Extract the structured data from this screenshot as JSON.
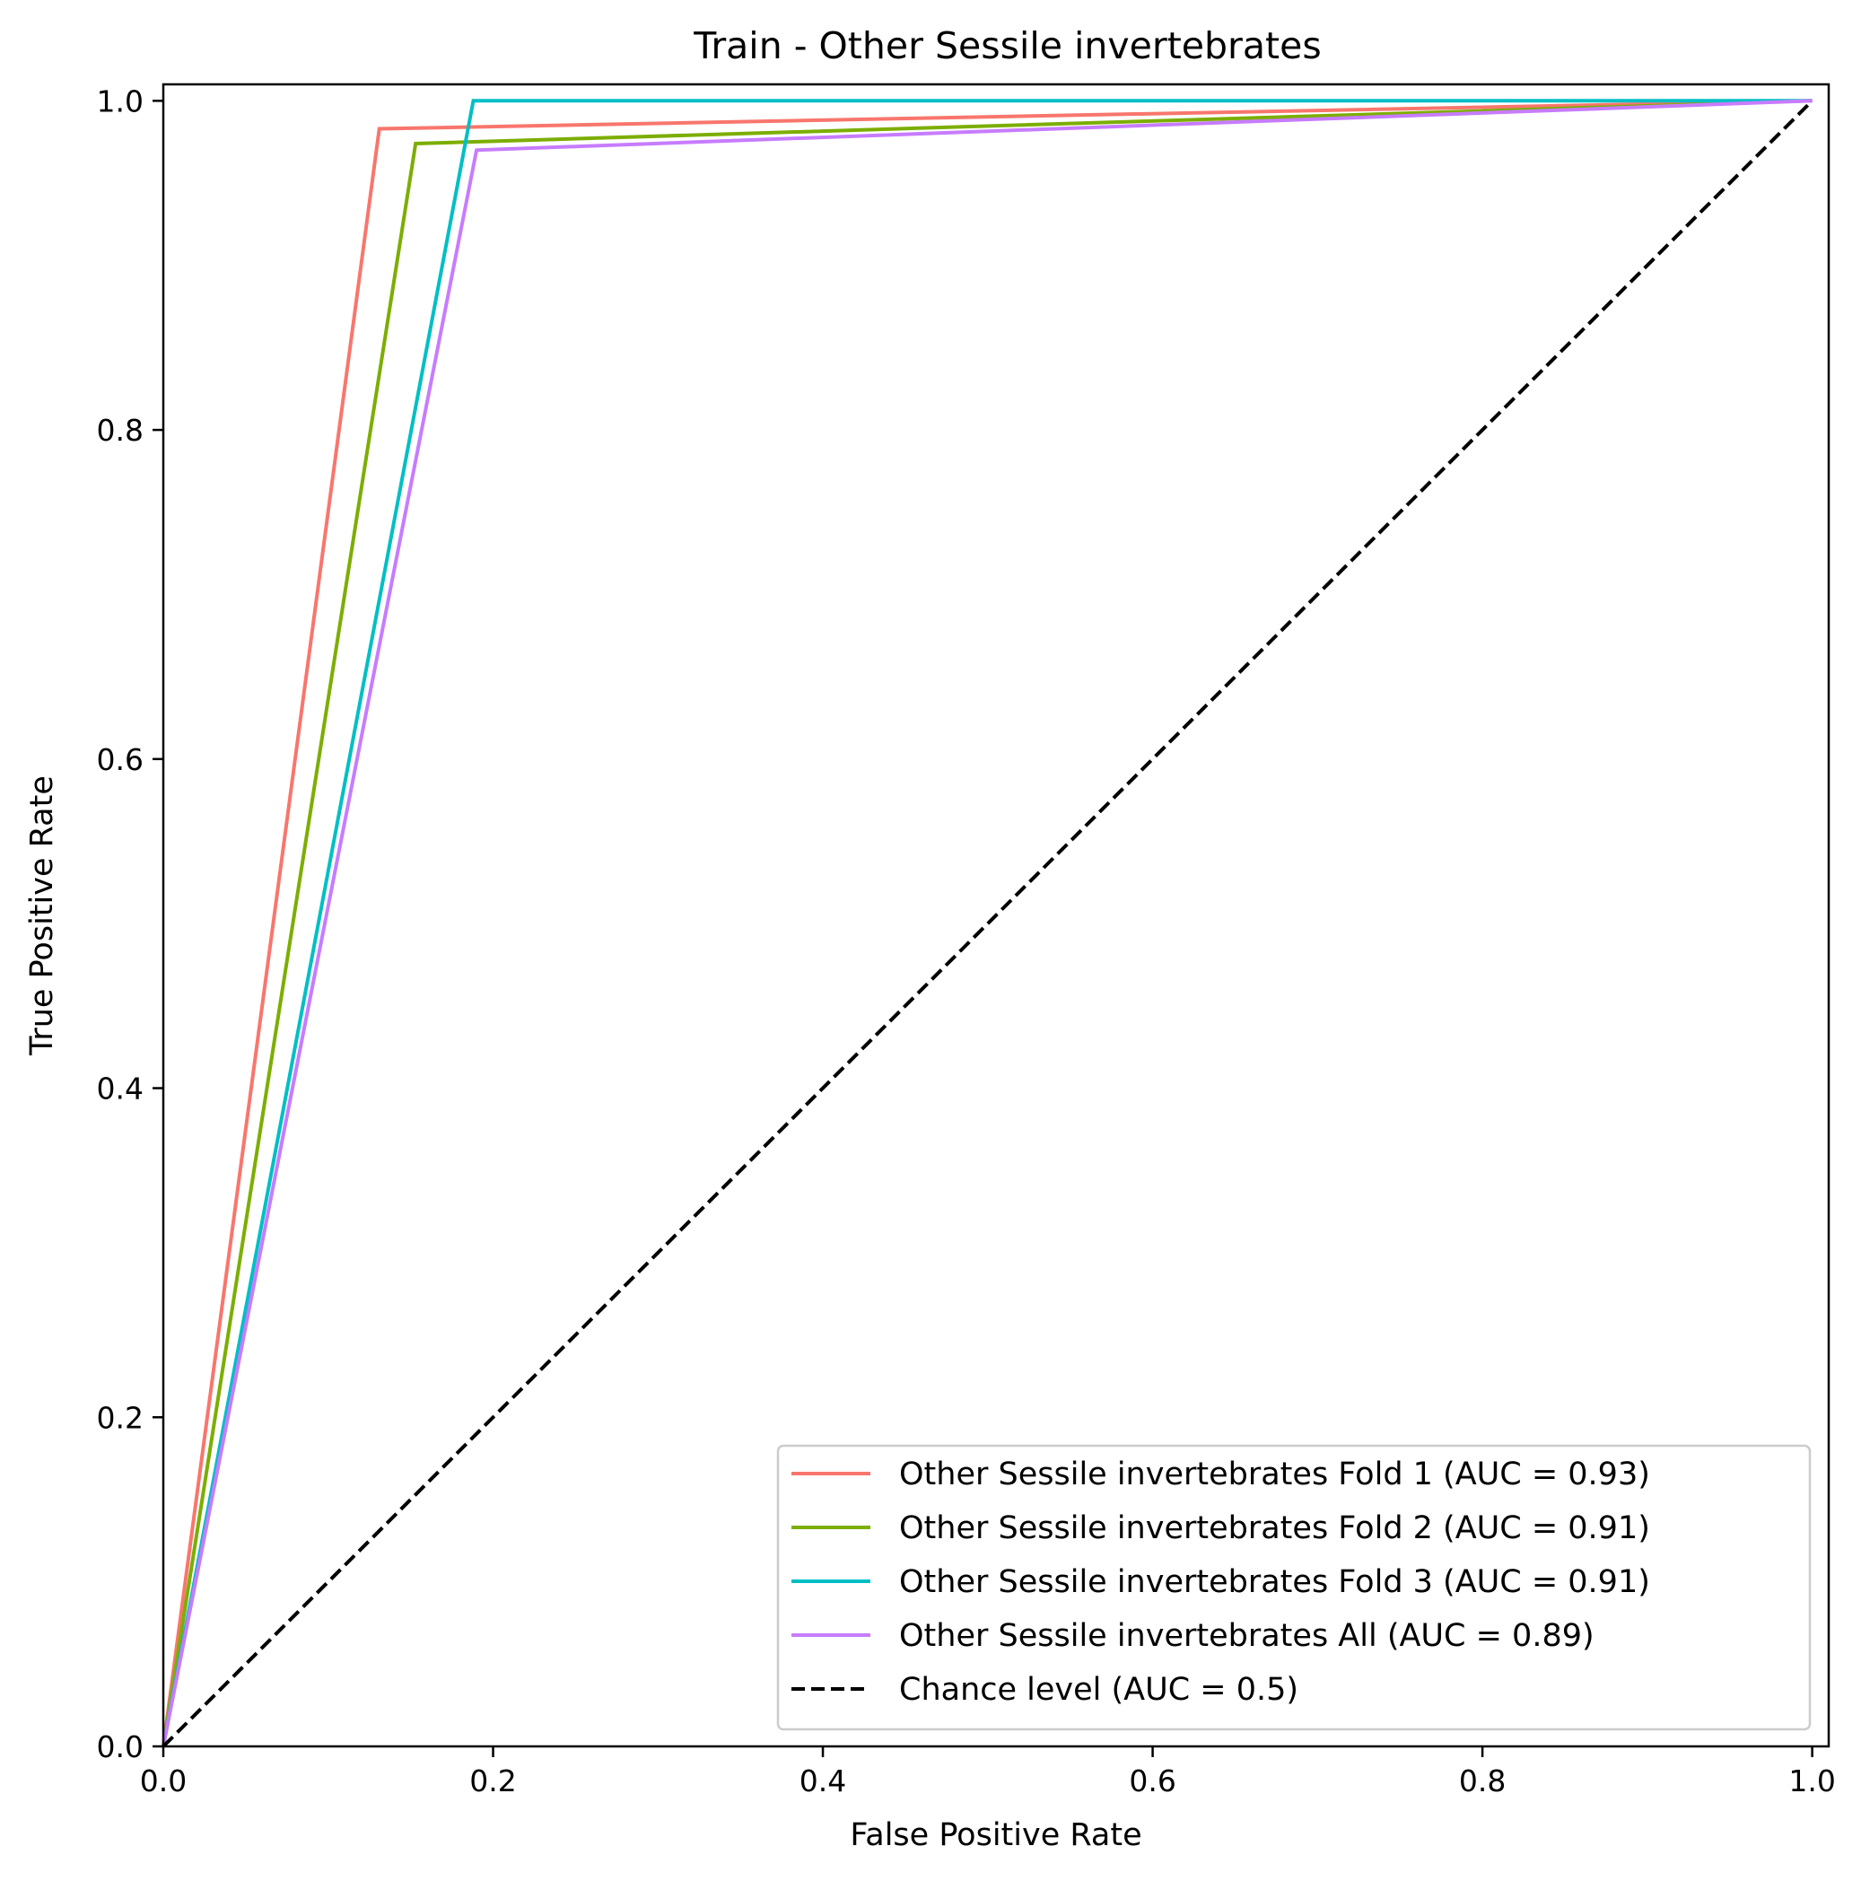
{
  "chart_data": {
    "type": "line",
    "title": "Train - Other Sessile invertebrates",
    "xlabel": "False Positive Rate",
    "ylabel": "True Positive Rate",
    "xlim": [
      0.0,
      1.01
    ],
    "ylim": [
      0.0,
      1.01
    ],
    "xticks": [
      0.0,
      0.2,
      0.4,
      0.6,
      0.8,
      1.0
    ],
    "yticks": [
      0.0,
      0.2,
      0.4,
      0.6,
      0.8,
      1.0
    ],
    "xtick_labels": [
      "0.0",
      "0.2",
      "0.4",
      "0.6",
      "0.8",
      "1.0"
    ],
    "ytick_labels": [
      "0.0",
      "0.2",
      "0.4",
      "0.6",
      "0.8",
      "1.0"
    ],
    "grid": false,
    "legend_position": "bottom-right",
    "series": [
      {
        "name": "Other Sessile invertebrates Fold 1 (AUC = 0.93)",
        "color": "#f8766d",
        "style": "solid",
        "x": [
          0.0,
          0.131,
          1.0
        ],
        "y": [
          0.0,
          0.983,
          1.0
        ]
      },
      {
        "name": "Other Sessile invertebrates Fold 2 (AUC = 0.91)",
        "color": "#7cae00",
        "style": "solid",
        "x": [
          0.0,
          0.153,
          1.0
        ],
        "y": [
          0.0,
          0.974,
          1.0
        ]
      },
      {
        "name": "Other Sessile invertebrates Fold 3 (AUC = 0.91)",
        "color": "#00bfc4",
        "style": "solid",
        "x": [
          0.0,
          0.188,
          1.0
        ],
        "y": [
          0.0,
          1.0,
          1.0
        ]
      },
      {
        "name": "Other Sessile invertebrates All (AUC = 0.89)",
        "color": "#c77cff",
        "style": "solid",
        "x": [
          0.0,
          0.19,
          1.0
        ],
        "y": [
          0.0,
          0.97,
          1.0
        ]
      },
      {
        "name": "Chance level (AUC = 0.5)",
        "color": "#000000",
        "style": "dashed",
        "x": [
          0.0,
          1.0
        ],
        "y": [
          0.0,
          1.0
        ]
      }
    ]
  }
}
